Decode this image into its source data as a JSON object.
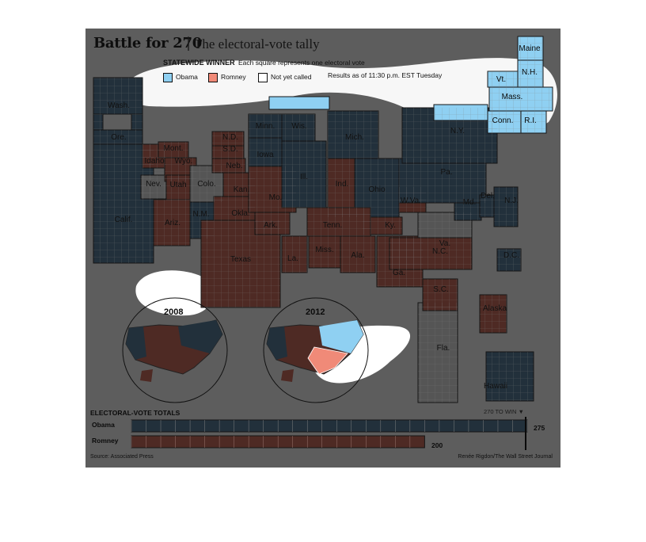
{
  "header": {
    "title": "Battle for 270",
    "separator": "|",
    "subtitle": "The electoral-vote tally"
  },
  "legend": {
    "heading": "STATEWIDE WINNER",
    "description": "Each square represents one electoral vote",
    "items": [
      {
        "label": "Obama",
        "color": "#8fd0f2"
      },
      {
        "label": "Romney",
        "color": "#f08a78"
      },
      {
        "label": "Not yet called",
        "color": "#ffffff"
      }
    ],
    "as_of": "Results as of 11:30 p.m. EST Tuesday"
  },
  "colors": {
    "background": "#5d5d5d",
    "dem_dim": "#22303b",
    "rep_dim": "#4e2a24",
    "uncalled_dim": "#555555",
    "dem_bright": "#8fd0f2",
    "rep_bright": "#f08a78",
    "highlight": "#ffffff",
    "grid_line": "#808080"
  },
  "insets": [
    {
      "title": "2008"
    },
    {
      "title": "2012"
    }
  ],
  "totals": {
    "heading": "ELECTORAL-VOTE TOTALS",
    "to_win_label": "270 TO WIN",
    "to_win_marker": "▼",
    "threshold": 270,
    "max": 538,
    "obama_label": "Obama",
    "obama_value": "275",
    "romney_label": "Romney",
    "romney_value": "200"
  },
  "footer": {
    "source": "Source: Associated Press",
    "credit": "Renée Rigdon/The Wall Street Journal"
  },
  "chart_data": {
    "type": "heatmap",
    "title": "Battle for 270",
    "subtitle": "The electoral-vote tally",
    "note": "Each square represents one electoral vote",
    "status": "Results as of 11:30 p.m. EST Tuesday",
    "states": [
      {
        "state": "Maine",
        "label": "Maine",
        "winner": "Obama",
        "highlighted": true
      },
      {
        "state": "New Hampshire",
        "label": "N.H.",
        "winner": "Obama",
        "highlighted": true
      },
      {
        "state": "Vermont",
        "label": "Vt.",
        "winner": "Obama",
        "highlighted": true
      },
      {
        "state": "Massachusetts",
        "label": "Mass.",
        "winner": "Obama",
        "highlighted": true
      },
      {
        "state": "Connecticut",
        "label": "Conn.",
        "winner": "Obama",
        "highlighted": true
      },
      {
        "state": "Rhode Island",
        "label": "R.I.",
        "winner": "Obama",
        "highlighted": true
      },
      {
        "state": "New York",
        "label": "N.Y.",
        "winner": "Obama",
        "highlighted": false
      },
      {
        "state": "Washington",
        "label": "Wash.",
        "winner": "Obama",
        "highlighted": false
      },
      {
        "state": "Oregon",
        "label": "Ore.",
        "winner": "Obama",
        "highlighted": false
      },
      {
        "state": "California",
        "label": "Calif.",
        "winner": "Obama",
        "highlighted": false
      },
      {
        "state": "Nevada",
        "label": "Nev.",
        "winner": "Not yet called",
        "highlighted": false
      },
      {
        "state": "Idaho",
        "label": "Idaho",
        "winner": "Romney",
        "highlighted": false
      },
      {
        "state": "Montana",
        "label": "Mont.",
        "winner": "Romney",
        "highlighted": false
      },
      {
        "state": "Wyoming",
        "label": "Wyo.",
        "winner": "Romney",
        "highlighted": false
      },
      {
        "state": "Utah",
        "label": "Utah",
        "winner": "Romney",
        "highlighted": false
      },
      {
        "state": "Colorado",
        "label": "Colo.",
        "winner": "Not yet called",
        "highlighted": false
      },
      {
        "state": "Arizona",
        "label": "Ariz.",
        "winner": "Romney",
        "highlighted": false
      },
      {
        "state": "New Mexico",
        "label": "N.M.",
        "winner": "Obama",
        "highlighted": false
      },
      {
        "state": "North Dakota",
        "label": "N.D.",
        "winner": "Romney",
        "highlighted": false
      },
      {
        "state": "South Dakota",
        "label": "S.D.",
        "winner": "Romney",
        "highlighted": false
      },
      {
        "state": "Nebraska",
        "label": "Neb.",
        "winner": "Romney",
        "highlighted": false
      },
      {
        "state": "Kansas",
        "label": "Kan.",
        "winner": "Romney",
        "highlighted": false
      },
      {
        "state": "Oklahoma",
        "label": "Okla.",
        "winner": "Romney",
        "highlighted": false
      },
      {
        "state": "Texas",
        "label": "Texas",
        "winner": "Romney",
        "highlighted": false
      },
      {
        "state": "Minnesota",
        "label": "Minn.",
        "winner": "Obama",
        "highlighted": false
      },
      {
        "state": "Iowa",
        "label": "Iowa",
        "winner": "Obama",
        "highlighted": false
      },
      {
        "state": "Missouri",
        "label": "Mo.",
        "winner": "Romney",
        "highlighted": false
      },
      {
        "state": "Arkansas",
        "label": "Ark.",
        "winner": "Romney",
        "highlighted": false
      },
      {
        "state": "Louisiana",
        "label": "La.",
        "winner": "Romney",
        "highlighted": false
      },
      {
        "state": "Wisconsin",
        "label": "Wis.",
        "winner": "Obama",
        "highlighted": false
      },
      {
        "state": "Illinois",
        "label": "Ill.",
        "winner": "Obama",
        "highlighted": false
      },
      {
        "state": "Michigan",
        "label": "Mich.",
        "winner": "Obama",
        "highlighted": false
      },
      {
        "state": "Indiana",
        "label": "Ind.",
        "winner": "Romney",
        "highlighted": false
      },
      {
        "state": "Ohio",
        "label": "Ohio",
        "winner": "Obama",
        "highlighted": false
      },
      {
        "state": "Kentucky",
        "label": "Ky.",
        "winner": "Romney",
        "highlighted": false
      },
      {
        "state": "Tennessee",
        "label": "Tenn.",
        "winner": "Romney",
        "highlighted": false
      },
      {
        "state": "Mississippi",
        "label": "Miss.",
        "winner": "Romney",
        "highlighted": false
      },
      {
        "state": "Alabama",
        "label": "Ala.",
        "winner": "Romney",
        "highlighted": false
      },
      {
        "state": "Georgia",
        "label": "Ga.",
        "winner": "Romney",
        "highlighted": false
      },
      {
        "state": "Florida",
        "label": "Fla.",
        "winner": "Not yet called",
        "highlighted": false
      },
      {
        "state": "South Carolina",
        "label": "S.C.",
        "winner": "Romney",
        "highlighted": false
      },
      {
        "state": "North Carolina",
        "label": "N.C.",
        "winner": "Romney",
        "highlighted": false
      },
      {
        "state": "Virginia",
        "label": "Va.",
        "winner": "Not yet called",
        "highlighted": false
      },
      {
        "state": "West Virginia",
        "label": "W.Va.",
        "winner": "Romney",
        "highlighted": false
      },
      {
        "state": "Pennsylvania",
        "label": "Pa.",
        "winner": "Obama",
        "highlighted": false
      },
      {
        "state": "Maryland",
        "label": "Md.",
        "winner": "Obama",
        "highlighted": false
      },
      {
        "state": "Delaware",
        "label": "Del.",
        "winner": "Obama",
        "highlighted": false
      },
      {
        "state": "New Jersey",
        "label": "N.J.",
        "winner": "Obama",
        "highlighted": false
      },
      {
        "state": "District of Columbia",
        "label": "D.C.",
        "winner": "Obama",
        "highlighted": false
      },
      {
        "state": "Alaska",
        "label": "Alaska",
        "winner": "Romney",
        "highlighted": false
      },
      {
        "state": "Hawaii",
        "label": "Hawaii",
        "winner": "Obama",
        "highlighted": false
      }
    ],
    "totals": [
      {
        "name": "Obama",
        "value": 275
      },
      {
        "name": "Romney",
        "value": 200
      }
    ],
    "threshold": 270
  }
}
